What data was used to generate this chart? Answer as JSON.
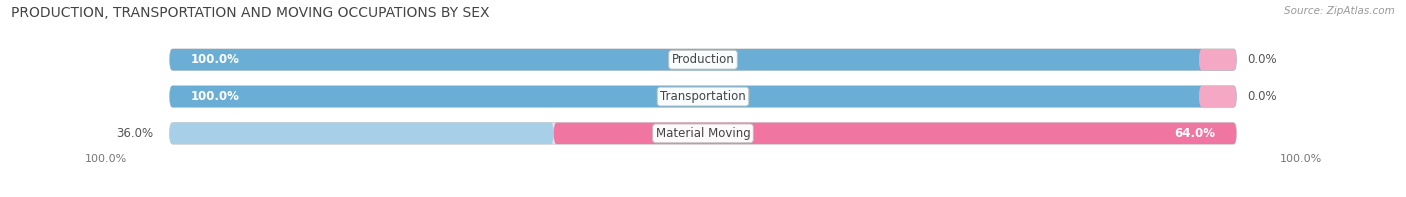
{
  "title": "PRODUCTION, TRANSPORTATION AND MOVING OCCUPATIONS BY SEX",
  "source": "Source: ZipAtlas.com",
  "categories": [
    "Production",
    "Transportation",
    "Material Moving"
  ],
  "male_values": [
    100.0,
    100.0,
    36.0
  ],
  "female_values": [
    0.0,
    0.0,
    64.0
  ],
  "male_color": "#6aaed6",
  "male_color_light": "#a8cfe8",
  "female_color": "#f075a0",
  "female_color_light": "#f5a8c4",
  "bar_bg_color": "#e8e8e8",
  "bar_height": 0.58,
  "title_fontsize": 10,
  "label_fontsize": 8.5,
  "axis_label_fontsize": 8,
  "figsize": [
    14.06,
    1.97
  ],
  "dpi": 100
}
